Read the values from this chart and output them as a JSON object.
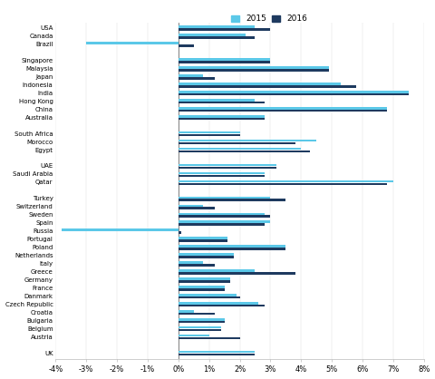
{
  "categories": [
    "USA",
    "Canada",
    "Brazil",
    "",
    "Singapore",
    "Malaysia",
    "Japan",
    "Indonesia",
    "India",
    "Hong Kong",
    "China",
    "Australia",
    "",
    "South Africa",
    "Morocco",
    "Egypt",
    "",
    "UAE",
    "Saudi Arabia",
    "Qatar",
    "",
    "Turkey",
    "Switzerland",
    "Sweden",
    "Spain",
    "Russia",
    "Portugal",
    "Poland",
    "Netherlands",
    "Italy",
    "Greece",
    "Germany",
    "France",
    "Danmark",
    "Czech Republic",
    "Croatia",
    "Bulgaria",
    "Belgium",
    "Austria",
    "",
    "UK"
  ],
  "values_2015": [
    2.5,
    2.2,
    -3.0,
    null,
    3.0,
    4.9,
    0.8,
    5.3,
    7.5,
    2.5,
    6.8,
    2.8,
    null,
    2.0,
    4.5,
    4.0,
    null,
    3.2,
    2.8,
    7.0,
    null,
    3.0,
    0.8,
    2.8,
    3.0,
    -3.8,
    1.6,
    3.5,
    1.8,
    0.8,
    2.5,
    1.7,
    1.5,
    1.9,
    2.6,
    0.5,
    1.5,
    1.4,
    1.0,
    null,
    2.5
  ],
  "values_2016": [
    3.0,
    2.5,
    0.5,
    null,
    3.0,
    4.9,
    1.2,
    5.8,
    7.5,
    2.8,
    6.8,
    2.8,
    null,
    2.0,
    3.8,
    4.3,
    null,
    3.2,
    2.8,
    6.8,
    null,
    3.5,
    1.2,
    3.0,
    2.8,
    0.1,
    1.6,
    3.5,
    1.8,
    1.2,
    3.8,
    1.7,
    1.5,
    2.0,
    2.8,
    1.2,
    1.5,
    1.4,
    2.0,
    null,
    2.5
  ],
  "color_2015": "#5bc8e8",
  "color_2016": "#1e3a5f",
  "xlim": [
    -4,
    8
  ],
  "xtick_labels": [
    "-4%",
    "-3%",
    "-2%",
    "-1%",
    "0%",
    "1%",
    "2%",
    "3%",
    "4%",
    "5%",
    "6%",
    "7%",
    "8%"
  ],
  "xtick_values": [
    -4,
    -3,
    -2,
    -1,
    0,
    1,
    2,
    3,
    4,
    5,
    6,
    7,
    8
  ],
  "bar_height": 0.28,
  "label_2015": "2015",
  "label_2016": "2016"
}
